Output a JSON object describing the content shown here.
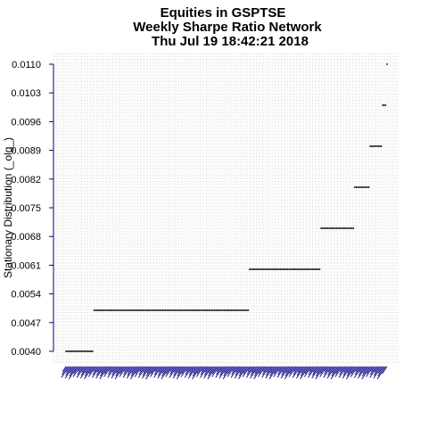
{
  "chart_data": {
    "type": "scatter",
    "title_lines": [
      "Equities in GSPTSE",
      "Weekly  Sharpe Ratio Network",
      "Thu Jul 19 18:42:21 2018"
    ],
    "ylabel": "Stationary Distribution (_olg_)",
    "xlabel": "",
    "ylim": [
      0.004,
      0.011
    ],
    "yticks": [
      "0.0040",
      "0.0047",
      "0.0054",
      "0.0061",
      "0.0068",
      "0.0075",
      "0.0082",
      "0.0089",
      "0.0096",
      "0.0103",
      "0.0110"
    ],
    "grid": true,
    "n_points": 230,
    "levels": [
      {
        "value": 0.004,
        "count": 20
      },
      {
        "value": 0.005,
        "count": 111
      },
      {
        "value": 0.006,
        "count": 51
      },
      {
        "value": 0.007,
        "count": 24
      },
      {
        "value": 0.008,
        "count": 11
      },
      {
        "value": 0.009,
        "count": 9
      },
      {
        "value": 0.01,
        "count": 3
      },
      {
        "value": 0.011,
        "count": 1
      }
    ],
    "colors": {
      "points": "#000000",
      "x_labels": "#00008b",
      "axis": "#00008b",
      "grid": "#c8c8c8"
    }
  }
}
